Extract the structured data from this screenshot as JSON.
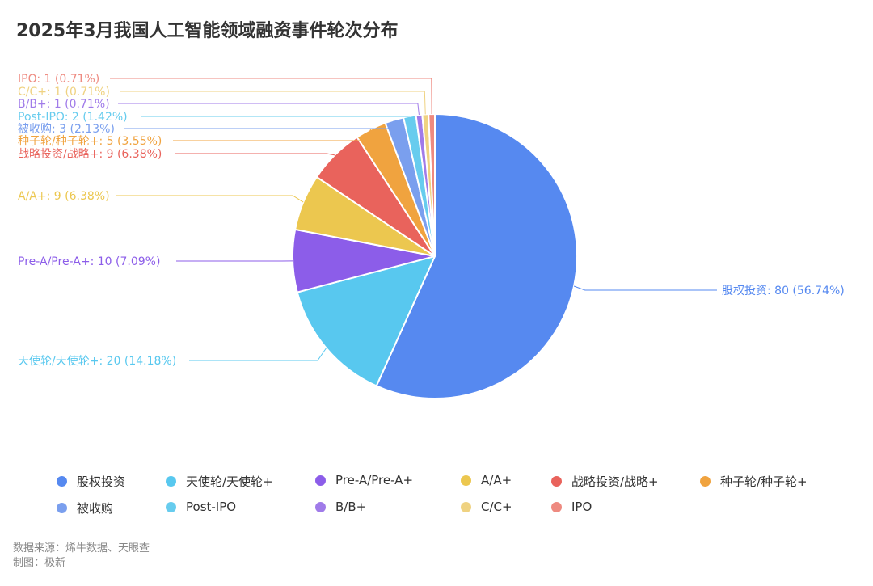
{
  "chart_data": {
    "type": "pie",
    "title": "2025年3月我国人工智能领域融资事件轮次分布",
    "slices": [
      {
        "name": "股权投资",
        "value": 80,
        "percent": "56.74%",
        "color": "#5689f0"
      },
      {
        "name": "天使轮/天使轮+",
        "value": 20,
        "percent": "14.18%",
        "color": "#58c8ef"
      },
      {
        "name": "Pre-A/Pre-A+",
        "value": 10,
        "percent": "7.09%",
        "color": "#8c5de9"
      },
      {
        "name": "A/A+",
        "value": 9,
        "percent": "6.38%",
        "color": "#ecc74f"
      },
      {
        "name": "战略投资/战略+",
        "value": 9,
        "percent": "6.38%",
        "color": "#e9635c"
      },
      {
        "name": "种子轮/种子轮+",
        "value": 5,
        "percent": "3.55%",
        "color": "#f0a33f"
      },
      {
        "name": "被收购",
        "value": 3,
        "percent": "2.13%",
        "color": "#7a9fee"
      },
      {
        "name": "Post-IPO",
        "value": 2,
        "percent": "1.42%",
        "color": "#67ccee"
      },
      {
        "name": "B/B+",
        "value": 1,
        "percent": "0.71%",
        "color": "#a07be9"
      },
      {
        "name": "C/C+",
        "value": 1,
        "percent": "0.71%",
        "color": "#efd281"
      },
      {
        "name": "IPO",
        "value": 1,
        "percent": "0.71%",
        "color": "#ee8a80"
      }
    ],
    "legend_position": "bottom"
  },
  "footer": {
    "source": "数据来源：烯牛数据、天眼查",
    "author": "制图：极新"
  }
}
